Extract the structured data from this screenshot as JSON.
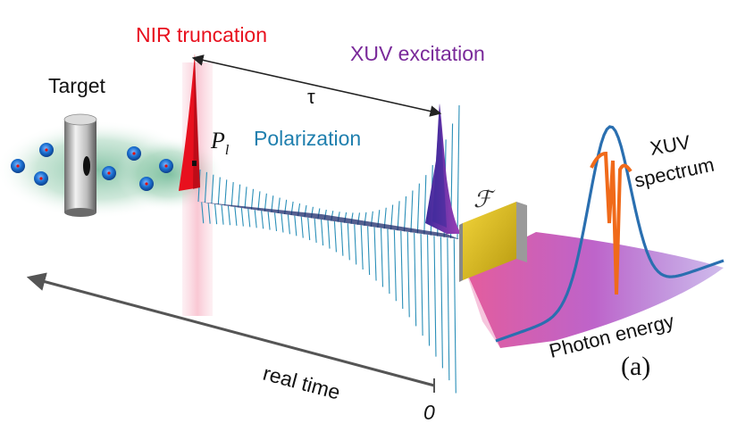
{
  "labels": {
    "nir": "NIR truncation",
    "xuv_exc": "XUV excitation",
    "target": "Target",
    "tau": "τ",
    "p": "P",
    "p_sub": "l",
    "polarization": "Polarization",
    "xuv_spec_1": "XUV",
    "xuv_spec_2": "spectrum",
    "fourier": "ℱ",
    "photon_energy": "Photon energy",
    "real_time": "real time",
    "zero": "0",
    "panel": "(a)"
  },
  "colors": {
    "nir": "#e8101e",
    "xuv": "#7a2a9a",
    "polarization": "#1f7fae",
    "wave": "#2a8fb8",
    "spectrum_line": "#2a6fb0",
    "spectrum_dip": "#f06a1a",
    "gas": "#2e9a6a",
    "atom": "#1a6fd0"
  }
}
